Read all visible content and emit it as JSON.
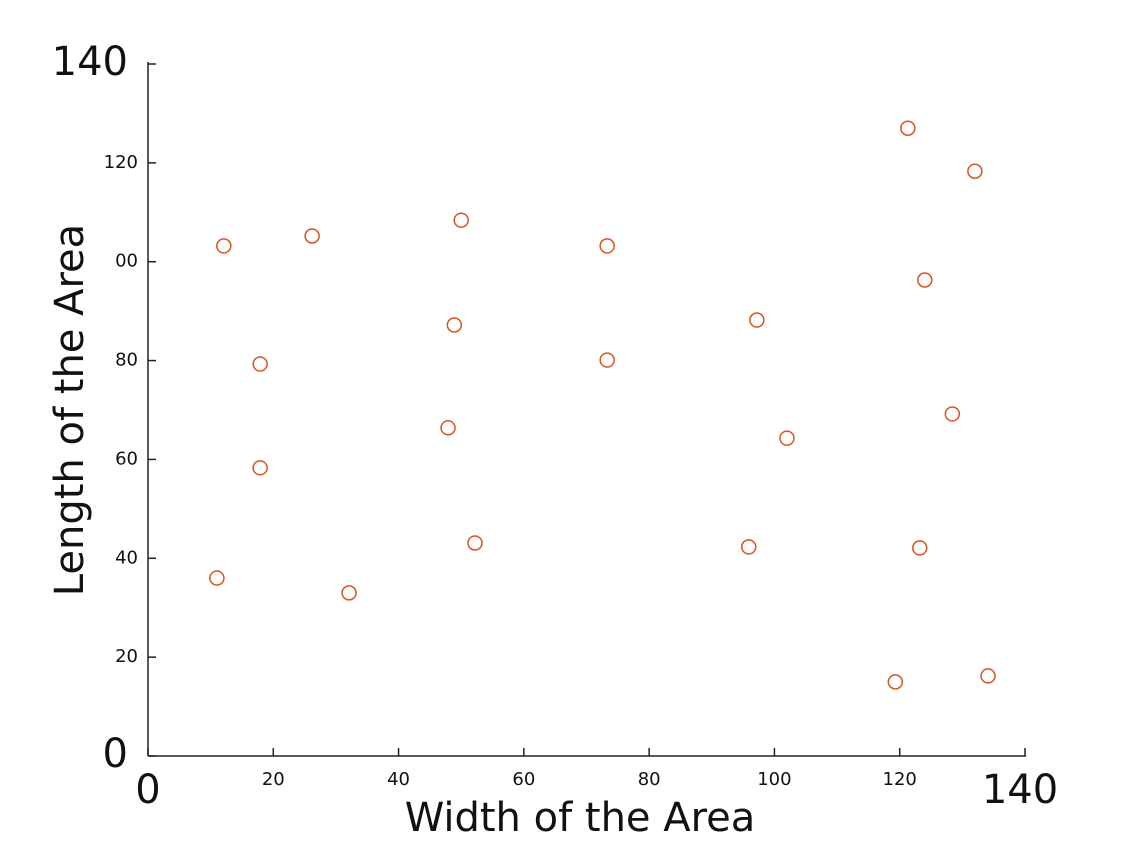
{
  "chart_data": {
    "type": "scatter",
    "x_label": "Width of the Area",
    "y_label": "Length of the Area",
    "xlim": [
      0,
      140
    ],
    "ylim": [
      0,
      140
    ],
    "xticks": [
      0,
      20,
      40,
      60,
      80,
      100,
      120,
      140
    ],
    "yticks": [
      0,
      20,
      40,
      60,
      80,
      {
        "value": 100,
        "label": "00"
      },
      120,
      140
    ],
    "color": "#d9541e",
    "x": [
      12.1,
      26.2,
      50.0,
      73.3,
      121.3,
      132.0,
      124.0,
      97.2,
      48.9,
      17.9,
      73.3,
      128.4,
      47.9,
      102.0,
      17.9,
      11.0,
      32.1,
      52.2,
      95.9,
      123.2,
      119.3,
      134.1
    ],
    "values": [
      103.2,
      105.2,
      108.4,
      103.2,
      127.0,
      118.3,
      96.3,
      88.2,
      87.2,
      79.3,
      80.1,
      69.2,
      66.4,
      64.3,
      58.3,
      36.0,
      33.0,
      43.1,
      42.3,
      42.1,
      15.0,
      16.2
    ]
  }
}
